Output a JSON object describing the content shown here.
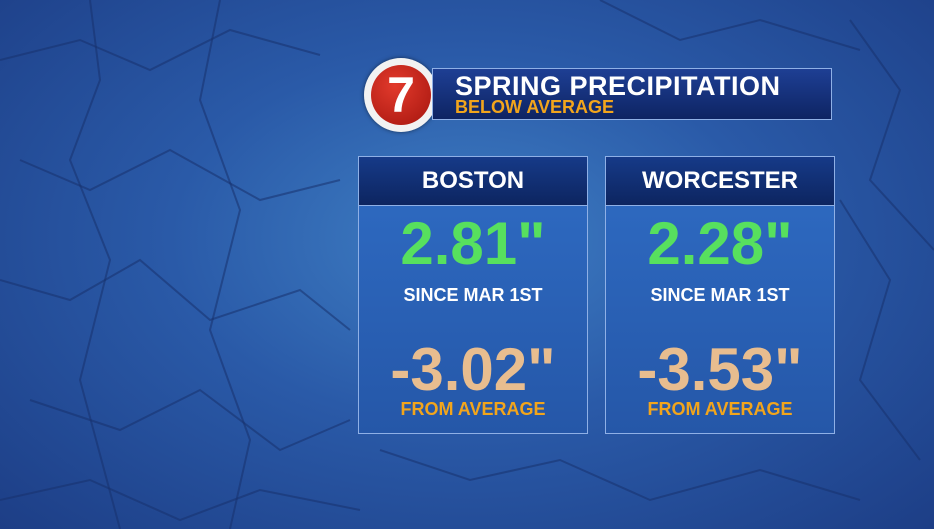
{
  "header": {
    "logo": "7",
    "title": "SPRING PRECIPITATION",
    "subtitle": "BELOW AVERAGE"
  },
  "cards": [
    {
      "city": "BOSTON",
      "amount": "2.81\"",
      "since_label": "SINCE MAR 1ST",
      "departure": "-3.02\"",
      "departure_label": "FROM AVERAGE"
    },
    {
      "city": "WORCESTER",
      "amount": "2.28\"",
      "since_label": "SINCE MAR 1ST",
      "departure": "-3.53\"",
      "departure_label": "FROM AVERAGE"
    }
  ]
}
